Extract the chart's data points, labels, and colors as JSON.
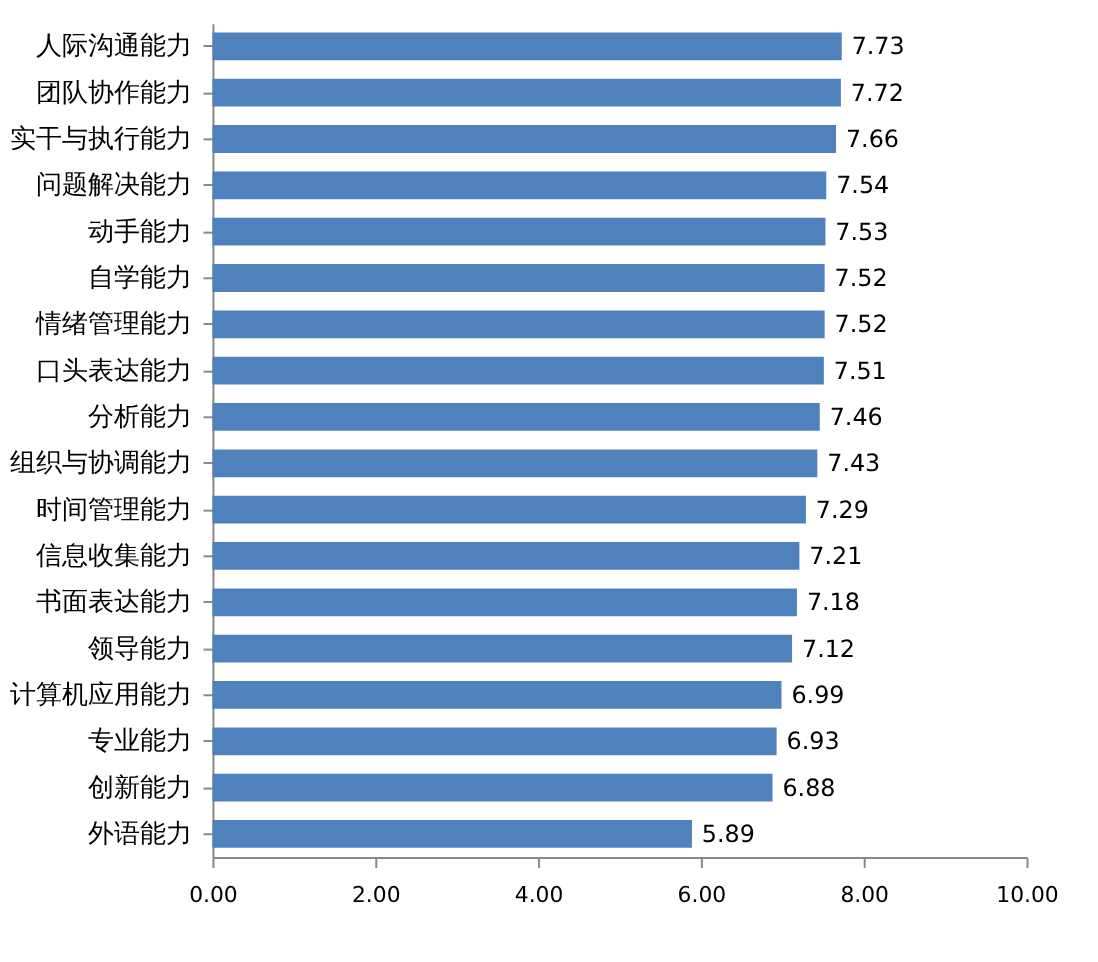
{
  "chart_data": {
    "type": "bar",
    "orientation": "horizontal",
    "categories": [
      "人际沟通能力",
      "团队协作能力",
      "实干与执行能力",
      "问题解决能力",
      "动手能力",
      "自学能力",
      "情绪管理能力",
      "口头表达能力",
      "分析能力",
      "组织与协调能力",
      "时间管理能力",
      "信息收集能力",
      "书面表达能力",
      "领导能力",
      "计算机应用能力",
      "专业能力",
      "创新能力",
      "外语能力"
    ],
    "values": [
      7.73,
      7.72,
      7.66,
      7.54,
      7.53,
      7.52,
      7.52,
      7.51,
      7.46,
      7.43,
      7.29,
      7.21,
      7.18,
      7.12,
      6.99,
      6.93,
      6.88,
      5.89
    ],
    "color": "#4f81bd",
    "data_labels": true,
    "grid": false,
    "xlim": [
      0,
      10
    ],
    "xticks": [
      {
        "value": 0,
        "label": "0.00"
      },
      {
        "value": 2,
        "label": "2.00"
      },
      {
        "value": 4,
        "label": "4.00"
      },
      {
        "value": 6,
        "label": "6.00"
      },
      {
        "value": 8,
        "label": "8.00"
      },
      {
        "value": 10,
        "label": "10.00"
      }
    ]
  }
}
